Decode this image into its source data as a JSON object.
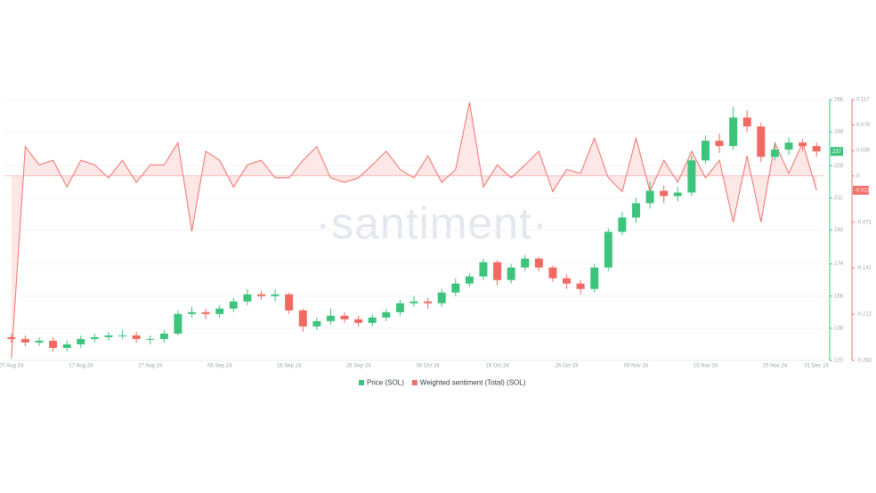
{
  "chart_data": {
    "type": "candlestick",
    "watermark": "·santiment·",
    "categories": [
      "07 Aug 24",
      null,
      null,
      null,
      null,
      "17 Aug 24",
      null,
      null,
      null,
      null,
      "27 Aug 24",
      null,
      null,
      null,
      null,
      "06 Sep 24",
      null,
      null,
      null,
      null,
      "16 Sep 24",
      null,
      null,
      null,
      null,
      "26 Sep 24",
      null,
      null,
      null,
      null,
      "06 Oct 24",
      null,
      null,
      null,
      null,
      "16 Oct 24",
      null,
      null,
      null,
      null,
      "26 Oct 24",
      null,
      null,
      null,
      null,
      "05 Nov 24",
      null,
      null,
      null,
      null,
      "15 Nov 24",
      null,
      null,
      null,
      null,
      "25 Nov 24",
      null,
      null,
      "01 Dec 24"
    ],
    "series": [
      {
        "name": "Price (SOL)",
        "type": "candlestick",
        "color": "#3cc47c",
        "down_color": "#ef6a62",
        "open": [
          133,
          132,
          130,
          131,
          127,
          129,
          132,
          133,
          134,
          134,
          132,
          132,
          135,
          146,
          147,
          146,
          149,
          153,
          157,
          156,
          157,
          148,
          139,
          142,
          145,
          143,
          141,
          144,
          147,
          152,
          153,
          152,
          158,
          163,
          167,
          175,
          165,
          172,
          177,
          172,
          166,
          163,
          160,
          172,
          192,
          200,
          208,
          215,
          212,
          214,
          232,
          243,
          240,
          256,
          251,
          234,
          238,
          242,
          240
        ],
        "high": [
          135,
          134,
          133,
          133,
          131,
          134,
          135,
          136,
          137,
          136,
          134,
          137,
          148,
          150,
          149,
          151,
          155,
          160,
          159,
          160,
          158,
          149,
          144,
          149,
          147,
          145,
          146,
          149,
          154,
          156,
          155,
          160,
          166,
          169,
          177,
          176,
          174,
          179,
          178,
          173,
          168,
          165,
          174,
          194,
          203,
          211,
          220,
          218,
          217,
          235,
          246,
          247,
          262,
          260,
          253,
          241,
          245,
          244,
          242
        ],
        "low": [
          130,
          128,
          128,
          125,
          125,
          127,
          130,
          131,
          132,
          130,
          129,
          130,
          134,
          144,
          143,
          144,
          147,
          151,
          154,
          153,
          146,
          136,
          137,
          140,
          141,
          139,
          139,
          142,
          145,
          150,
          149,
          150,
          156,
          161,
          165,
          162,
          163,
          170,
          170,
          164,
          160,
          157,
          158,
          170,
          190,
          197,
          205,
          208,
          209,
          212,
          230,
          236,
          238,
          248,
          231,
          232,
          235,
          237,
          234
        ],
        "close": [
          132,
          130,
          131,
          127,
          129,
          132,
          133,
          134,
          134,
          132,
          132,
          135,
          146,
          147,
          146,
          149,
          153,
          157,
          156,
          157,
          148,
          139,
          142,
          145,
          143,
          141,
          144,
          147,
          152,
          153,
          152,
          158,
          163,
          167,
          175,
          165,
          172,
          177,
          172,
          166,
          163,
          160,
          172,
          192,
          200,
          208,
          215,
          212,
          214,
          232,
          243,
          240,
          256,
          251,
          234,
          238,
          242,
          240,
          237
        ]
      },
      {
        "name": "Weighted sentiment (Total) (SOL)",
        "type": "area",
        "axis": "y2",
        "color": "#ef6f6a",
        "fill": "#fde2e1",
        "values": [
          -0.28,
          0.045,
          0.017,
          0.024,
          -0.017,
          0.024,
          0.017,
          -0.003,
          0.024,
          -0.01,
          0.017,
          0.017,
          0.051,
          -0.085,
          0.038,
          0.024,
          -0.017,
          0.017,
          0.024,
          -0.003,
          -0.003,
          0.024,
          0.045,
          -0.003,
          -0.01,
          -0.003,
          0.017,
          0.038,
          0.01,
          -0.003,
          0.031,
          -0.01,
          0.01,
          0.113,
          -0.017,
          0.017,
          -0.003,
          0.017,
          0.038,
          -0.024,
          0.01,
          0.004,
          0.058,
          -0.003,
          -0.024,
          0.058,
          -0.024,
          0.024,
          -0.01,
          0.038,
          -0.003,
          0.024,
          -0.071,
          0.031,
          -0.071,
          0.051,
          0.004,
          0.051,
          -0.022
        ]
      }
    ],
    "ylim": [
      120,
      266
    ],
    "yticks": [
      120,
      138,
      156,
      174,
      193,
      211,
      229,
      248,
      266
    ],
    "y2lim": [
      -0.283,
      0.117
    ],
    "y2ticks": [
      -0.283,
      -0.212,
      -0.141,
      -0.071,
      0,
      0.039,
      0.078,
      0.117
    ],
    "grid": true,
    "legend": "bottom"
  }
}
